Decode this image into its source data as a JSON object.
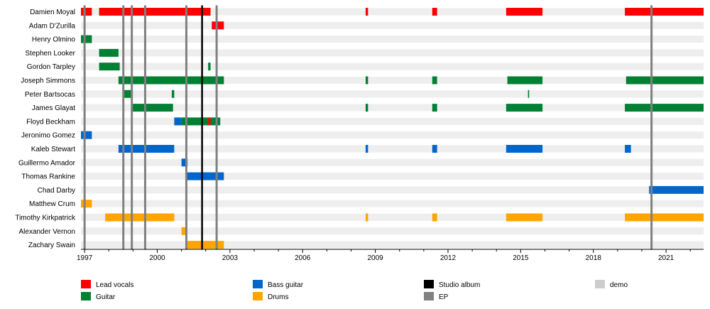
{
  "chart_data": {
    "type": "timeline",
    "title": "",
    "x_range": [
      1996.85,
      2022.55
    ],
    "ticks": [
      "1997",
      "2000",
      "2003",
      "2006",
      "2009",
      "2012",
      "2015",
      "2018",
      "2021"
    ],
    "colors": {
      "Lead vocals": "#ff0000",
      "Guitar": "#008033",
      "Bass guitar": "#0066cc",
      "Drums": "#ffa500",
      "Studio album": "#000000",
      "EP": "#808080",
      "demo": "#cccccc",
      "row_band": "#eeeeee"
    },
    "legend": [
      {
        "label": "Lead vocals",
        "role": "Lead vocals"
      },
      {
        "label": "Guitar",
        "role": "Guitar"
      },
      {
        "label": "Bass guitar",
        "role": "Bass guitar"
      },
      {
        "label": "Drums",
        "role": "Drums"
      },
      {
        "label": "Studio album",
        "role": "Studio album"
      },
      {
        "label": "EP",
        "role": "EP"
      },
      {
        "label": "demo",
        "role": "demo"
      }
    ],
    "members": [
      {
        "name": "Damien Moyal",
        "bars": [
          {
            "role": "Lead vocals",
            "start": 1996.85,
            "end": 1997.3
          },
          {
            "role": "Lead vocals",
            "start": 1997.6,
            "end": 2002.2
          },
          {
            "role": "Lead vocals",
            "start": 2008.6,
            "end": 2008.7
          },
          {
            "role": "Lead vocals",
            "start": 2011.35,
            "end": 2011.55
          },
          {
            "role": "Lead vocals",
            "start": 2014.4,
            "end": 2015.9
          },
          {
            "role": "Lead vocals",
            "start": 2019.3,
            "end": 2022.55
          }
        ]
      },
      {
        "name": "Adam D'Zurilla",
        "bars": [
          {
            "role": "Lead vocals",
            "start": 2002.25,
            "end": 2002.75
          }
        ]
      },
      {
        "name": "Henry Olmino",
        "bars": [
          {
            "role": "Guitar",
            "start": 1996.85,
            "end": 1997.3
          }
        ]
      },
      {
        "name": "Stephen Looker",
        "bars": [
          {
            "role": "Guitar",
            "start": 1997.6,
            "end": 1998.4
          }
        ]
      },
      {
        "name": "Gordon Tarpley",
        "bars": [
          {
            "role": "Guitar",
            "start": 1997.6,
            "end": 1998.45
          },
          {
            "role": "Guitar",
            "start": 2002.1,
            "end": 2002.2
          }
        ]
      },
      {
        "name": "Joseph Simmons",
        "bars": [
          {
            "role": "Guitar",
            "start": 1998.4,
            "end": 2002.75
          },
          {
            "role": "Guitar",
            "start": 2008.6,
            "end": 2008.7
          },
          {
            "role": "Guitar",
            "start": 2011.35,
            "end": 2011.55
          },
          {
            "role": "Guitar",
            "start": 2014.45,
            "end": 2015.9
          },
          {
            "role": "Guitar",
            "start": 2019.35,
            "end": 2022.55
          }
        ]
      },
      {
        "name": "Peter Bartsocas",
        "bars": [
          {
            "role": "Guitar",
            "start": 1998.6,
            "end": 1998.95
          },
          {
            "role": "Guitar",
            "start": 2000.6,
            "end": 2000.7
          },
          {
            "role": "Guitar",
            "start": 2015.3,
            "end": 2015.35
          }
        ]
      },
      {
        "name": "James Glayat",
        "bars": [
          {
            "role": "Guitar",
            "start": 1998.95,
            "end": 2000.65
          },
          {
            "role": "Guitar",
            "start": 2008.6,
            "end": 2008.7
          },
          {
            "role": "Guitar",
            "start": 2011.35,
            "end": 2011.55
          },
          {
            "role": "Guitar",
            "start": 2014.4,
            "end": 2015.9
          },
          {
            "role": "Guitar",
            "start": 2019.3,
            "end": 2022.55
          }
        ]
      },
      {
        "name": "Floyd Beckham",
        "bars": [
          {
            "role": "Bass guitar",
            "start": 2000.7,
            "end": 2001.0
          },
          {
            "role": "Guitar",
            "start": 2001.0,
            "end": 2002.6
          },
          {
            "role": "Lead vocals",
            "start": 2002.1,
            "end": 2002.2
          }
        ]
      },
      {
        "name": "Jeronimo Gomez",
        "bars": [
          {
            "role": "Bass guitar",
            "start": 1996.85,
            "end": 1997.3
          }
        ]
      },
      {
        "name": "Kaleb Stewart",
        "bars": [
          {
            "role": "Bass guitar",
            "start": 1998.4,
            "end": 2000.7
          },
          {
            "role": "Bass guitar",
            "start": 2008.6,
            "end": 2008.7
          },
          {
            "role": "Bass guitar",
            "start": 2011.35,
            "end": 2011.55
          },
          {
            "role": "Bass guitar",
            "start": 2014.4,
            "end": 2015.9
          },
          {
            "role": "Bass guitar",
            "start": 2019.3,
            "end": 2019.55
          }
        ]
      },
      {
        "name": "Guillermo Amador",
        "bars": [
          {
            "role": "Bass guitar",
            "start": 2001.0,
            "end": 2001.25
          }
        ]
      },
      {
        "name": "Thomas Rankine",
        "bars": [
          {
            "role": "Bass guitar",
            "start": 2001.2,
            "end": 2002.75
          }
        ]
      },
      {
        "name": "Chad Darby",
        "bars": [
          {
            "role": "Bass guitar",
            "start": 2020.3,
            "end": 2022.55
          }
        ]
      },
      {
        "name": "Matthew Crum",
        "bars": [
          {
            "role": "Drums",
            "start": 1996.85,
            "end": 1997.3
          }
        ]
      },
      {
        "name": "Timothy Kirkpatrick",
        "bars": [
          {
            "role": "Drums",
            "start": 1997.85,
            "end": 2000.7
          },
          {
            "role": "Drums",
            "start": 2008.6,
            "end": 2008.7
          },
          {
            "role": "Drums",
            "start": 2011.35,
            "end": 2011.55
          },
          {
            "role": "Drums",
            "start": 2014.4,
            "end": 2015.9
          },
          {
            "role": "Drums",
            "start": 2019.3,
            "end": 2022.55
          }
        ]
      },
      {
        "name": "Alexander Vernon",
        "bars": [
          {
            "role": "Drums",
            "start": 2001.0,
            "end": 2001.2
          }
        ]
      },
      {
        "name": "Zachary Swain",
        "bars": [
          {
            "role": "Drums",
            "start": 2001.2,
            "end": 2002.75
          }
        ]
      }
    ],
    "release_lines": [
      {
        "role": "Studio album",
        "x": 2001.85
      },
      {
        "role": "EP",
        "x": 1997.0
      },
      {
        "role": "EP",
        "x": 1998.6
      },
      {
        "role": "EP",
        "x": 1998.95
      },
      {
        "role": "EP",
        "x": 1999.5
      },
      {
        "role": "EP",
        "x": 2001.2
      },
      {
        "role": "EP",
        "x": 2002.45
      },
      {
        "role": "EP",
        "x": 2020.4
      }
    ]
  }
}
